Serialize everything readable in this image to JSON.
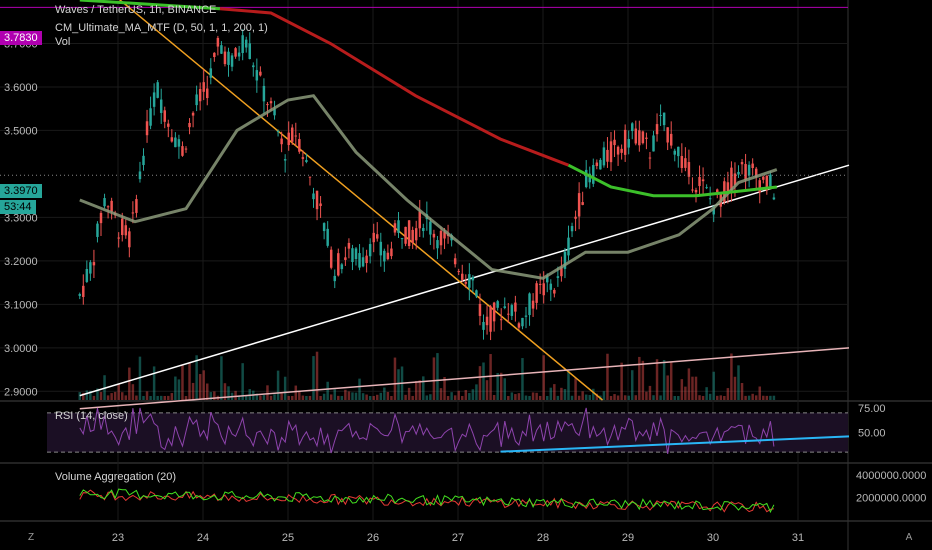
{
  "header": {
    "symbol_title": "Waves / TetherUS, 1h, BINANCE",
    "indicator_ma": "CM_Ultimate_MA_MTF (D, 50, 1, 1, 200, 1)",
    "indicator_vol": "Vol",
    "rsi_title": "RSI (14, close)",
    "volagg_title": "Volume Aggregation (20)"
  },
  "price_axis": {
    "ticks": [
      "3.7000",
      "3.6000",
      "3.5000",
      "3.3000",
      "3.2000",
      "3.1000",
      "3.0000",
      "2.9000"
    ],
    "current_price": "3.3970",
    "countdown": "53:44",
    "hline_price": "3.7830"
  },
  "rsi_axis": {
    "ticks": [
      "75.00",
      "50.00"
    ]
  },
  "volagg_axis": {
    "ticks": [
      "4000000.0000",
      "2000000.0000"
    ]
  },
  "time_axis": {
    "ticks": [
      "23",
      "24",
      "25",
      "26",
      "27",
      "28",
      "29",
      "30",
      "31"
    ]
  },
  "corner_buttons": {
    "left": "Z",
    "right": "A"
  },
  "colors": {
    "up": "#26a69a",
    "down": "#ef5350",
    "ma_fast": "#8b9a7a",
    "ma_slow_red": "#b71c1c",
    "ma_slow_green": "#3cc02a",
    "hline": "#b000b0",
    "rsi_line": "#8e44ad",
    "rsi_trend": "#29b6f6",
    "trendline_white": "#ffffff",
    "trendline_orange": "#f0a020",
    "trendline_pink": "#e8b4b8"
  },
  "chart_data": {
    "type": "candlestick",
    "title": "Waves / TetherUS, 1h, BINANCE",
    "ylim": [
      2.88,
      3.8
    ],
    "x_days": [
      "23",
      "24",
      "25",
      "26",
      "27",
      "28",
      "29",
      "30",
      "31"
    ],
    "anchor_points": [
      [
        22.55,
        3.12
      ],
      [
        22.7,
        3.2
      ],
      [
        22.85,
        3.35
      ],
      [
        23.0,
        3.28
      ],
      [
        23.15,
        3.25
      ],
      [
        23.3,
        3.45
      ],
      [
        23.45,
        3.6
      ],
      [
        23.6,
        3.52
      ],
      [
        23.75,
        3.45
      ],
      [
        23.9,
        3.55
      ],
      [
        24.05,
        3.6
      ],
      [
        24.2,
        3.7
      ],
      [
        24.35,
        3.65
      ],
      [
        24.5,
        3.72
      ],
      [
        24.65,
        3.62
      ],
      [
        24.8,
        3.55
      ],
      [
        24.95,
        3.45
      ],
      [
        25.1,
        3.5
      ],
      [
        25.25,
        3.4
      ],
      [
        25.4,
        3.3
      ],
      [
        25.55,
        3.18
      ],
      [
        25.7,
        3.22
      ],
      [
        25.85,
        3.2
      ],
      [
        26.0,
        3.25
      ],
      [
        26.15,
        3.2
      ],
      [
        26.3,
        3.28
      ],
      [
        26.45,
        3.26
      ],
      [
        26.6,
        3.3
      ],
      [
        26.75,
        3.26
      ],
      [
        26.9,
        3.24
      ],
      [
        27.05,
        3.18
      ],
      [
        27.2,
        3.15
      ],
      [
        27.3,
        3.05
      ],
      [
        27.45,
        3.08
      ],
      [
        27.6,
        3.1
      ],
      [
        27.75,
        3.06
      ],
      [
        27.9,
        3.12
      ],
      [
        28.05,
        3.14
      ],
      [
        28.2,
        3.15
      ],
      [
        28.35,
        3.28
      ],
      [
        28.5,
        3.38
      ],
      [
        28.65,
        3.42
      ],
      [
        28.8,
        3.45
      ],
      [
        28.95,
        3.47
      ],
      [
        29.1,
        3.5
      ],
      [
        29.25,
        3.45
      ],
      [
        29.4,
        3.52
      ],
      [
        29.55,
        3.47
      ],
      [
        29.7,
        3.4
      ],
      [
        29.85,
        3.38
      ],
      [
        30.0,
        3.33
      ],
      [
        30.15,
        3.36
      ],
      [
        30.3,
        3.42
      ],
      [
        30.45,
        3.4
      ],
      [
        30.6,
        3.38
      ],
      [
        30.75,
        3.36
      ]
    ],
    "ma50": [
      [
        22.55,
        3.34
      ],
      [
        23.2,
        3.29
      ],
      [
        23.8,
        3.32
      ],
      [
        24.4,
        3.5
      ],
      [
        25.0,
        3.57
      ],
      [
        25.3,
        3.58
      ],
      [
        25.8,
        3.45
      ],
      [
        26.4,
        3.34
      ],
      [
        26.9,
        3.26
      ],
      [
        27.4,
        3.18
      ],
      [
        28.0,
        3.16
      ],
      [
        28.5,
        3.22
      ],
      [
        29.0,
        3.22
      ],
      [
        29.6,
        3.26
      ],
      [
        30.0,
        3.32
      ],
      [
        30.3,
        3.38
      ],
      [
        30.6,
        3.4
      ],
      [
        30.75,
        3.41
      ]
    ],
    "ma200": [
      [
        22.55,
        3.8
      ],
      [
        24.2,
        3.78
      ],
      [
        24.8,
        3.77
      ],
      [
        25.5,
        3.7
      ],
      [
        26.5,
        3.58
      ],
      [
        27.5,
        3.48
      ],
      [
        28.3,
        3.42
      ],
      [
        28.8,
        3.37
      ],
      [
        29.3,
        3.35
      ],
      [
        29.8,
        3.35
      ],
      [
        30.3,
        3.36
      ],
      [
        30.75,
        3.37
      ]
    ],
    "hline": 3.783,
    "trendlines": [
      {
        "from": [
          22.55,
          2.89
        ],
        "to": [
          31.6,
          3.42
        ]
      },
      {
        "from": [
          22.9,
          3.82
        ],
        "to": [
          28.7,
          2.88
        ]
      },
      {
        "from": [
          22.55,
          2.86
        ],
        "to": [
          31.6,
          3.0
        ]
      }
    ],
    "rsi": {
      "ylim": [
        20,
        80
      ],
      "overbought": 70,
      "oversold": 30,
      "trend": {
        "from": [
          27.5,
          30.5
        ],
        "to": [
          31.6,
          46
        ]
      }
    },
    "volume_aggregation": {
      "ylim": [
        0,
        5000000
      ]
    }
  }
}
